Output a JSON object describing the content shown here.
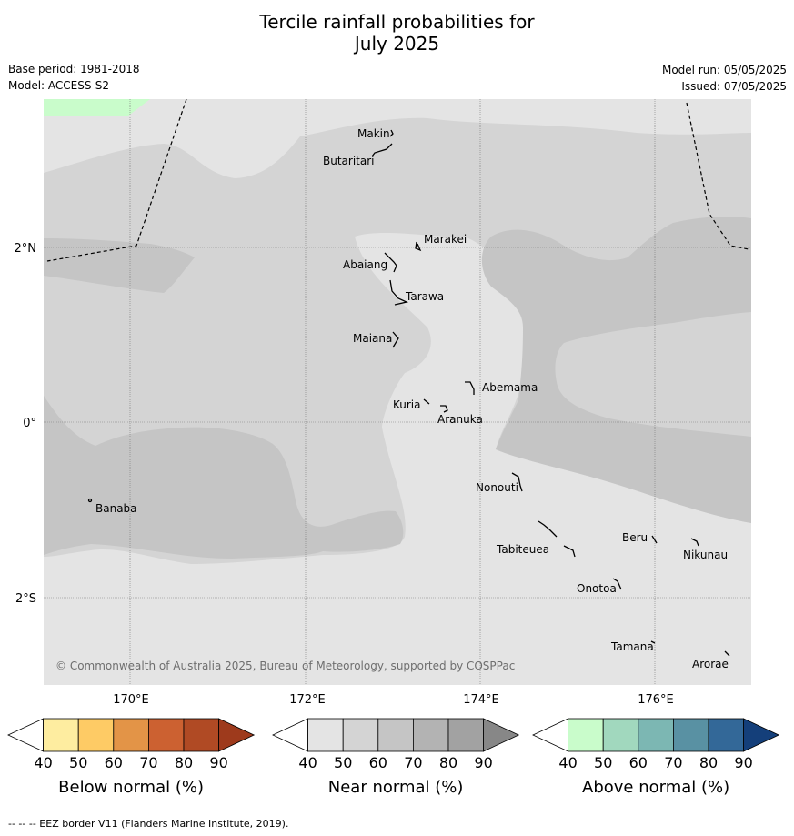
{
  "title_line1": "Tercile rainfall probabilities for",
  "title_line2": "July 2025",
  "meta_left": {
    "base_period": "Base period: 1981-2018",
    "model": "Model: ACCESS-S2"
  },
  "meta_right": {
    "model_run": "Model run: 05/05/2025",
    "issued": "Issued: 07/05/2025"
  },
  "map": {
    "lat_labels": [
      "2°N",
      "0°",
      "2°S"
    ],
    "lon_labels": [
      "170°E",
      "172°E",
      "174°E",
      "176°E"
    ],
    "places": {
      "makin": "Makin",
      "butaritari": "Butaritari",
      "marakei": "Marakei",
      "abaiang": "Abaiang",
      "tarawa": "Tarawa",
      "maiana": "Maiana",
      "abemama": "Abemama",
      "kuria": "Kuria",
      "aranuka": "Aranuka",
      "banaba": "Banaba",
      "nonouti": "Nonouti",
      "tabiteuea": "Tabiteuea",
      "beru": "Beru",
      "nikunau": "Nikunau",
      "onotoa": "Onotoa",
      "tamana": "Tamana",
      "arorae": "Arorae"
    },
    "copyright": "© Commonwealth of Australia 2025, Bureau of Meteorology, supported by COSPPac"
  },
  "colorbars": [
    {
      "title": "Below normal (%)",
      "ticks": [
        "40",
        "50",
        "60",
        "70",
        "80",
        "90"
      ],
      "colors": [
        "#ffffff",
        "#feeda0",
        "#fecb65",
        "#e39447",
        "#cc6131",
        "#b04a24",
        "#9e3a1c"
      ]
    },
    {
      "title": "Near normal (%)",
      "ticks": [
        "40",
        "50",
        "60",
        "70",
        "80",
        "90"
      ],
      "colors": [
        "#ffffff",
        "#e4e4e4",
        "#d4d4d4",
        "#c5c5c5",
        "#b3b3b3",
        "#a2a2a2",
        "#878787"
      ]
    },
    {
      "title": "Above normal (%)",
      "ticks": [
        "40",
        "50",
        "60",
        "70",
        "80",
        "90"
      ],
      "colors": [
        "#ffffff",
        "#c9fccb",
        "#a1d8be",
        "#7cb7b3",
        "#5991a3",
        "#336898",
        "#143f7a"
      ]
    }
  ],
  "footnote": "--  --  -- EEZ border V11 (Flanders Marine Institute, 2019)."
}
